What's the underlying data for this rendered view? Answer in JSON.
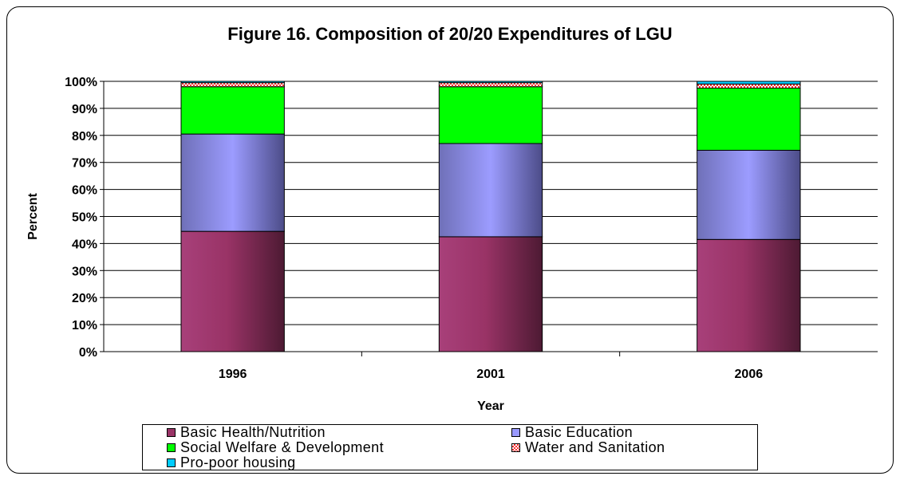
{
  "chart_data": {
    "type": "bar",
    "stacked": true,
    "title": "Figure 16. Composition of 20/20 Expenditures of LGU",
    "xlabel": "Year",
    "ylabel": "Percent",
    "categories": [
      "1996",
      "2001",
      "2006"
    ],
    "ylim": [
      0,
      100
    ],
    "yticks": [
      "0%",
      "10%",
      "20%",
      "30%",
      "40%",
      "50%",
      "60%",
      "70%",
      "80%",
      "90%",
      "100%"
    ],
    "grid": true,
    "legend_position": "bottom",
    "series": [
      {
        "name": "Basic Health/Nutrition",
        "values": [
          44.5,
          42.5,
          41.5
        ],
        "color": "#993366"
      },
      {
        "name": "Basic Education",
        "values": [
          36,
          34.5,
          33
        ],
        "color": "#9999FF"
      },
      {
        "name": "Social Welfare & Development",
        "values": [
          17.5,
          21,
          23
        ],
        "color": "#00FF00"
      },
      {
        "name": "Water and Sanitation",
        "values": [
          1.5,
          1.5,
          1.5
        ],
        "color": "#FF6666"
      },
      {
        "name": "Pro-poor housing",
        "values": [
          0.5,
          0.5,
          1
        ],
        "color": "#00CCFF"
      }
    ]
  }
}
